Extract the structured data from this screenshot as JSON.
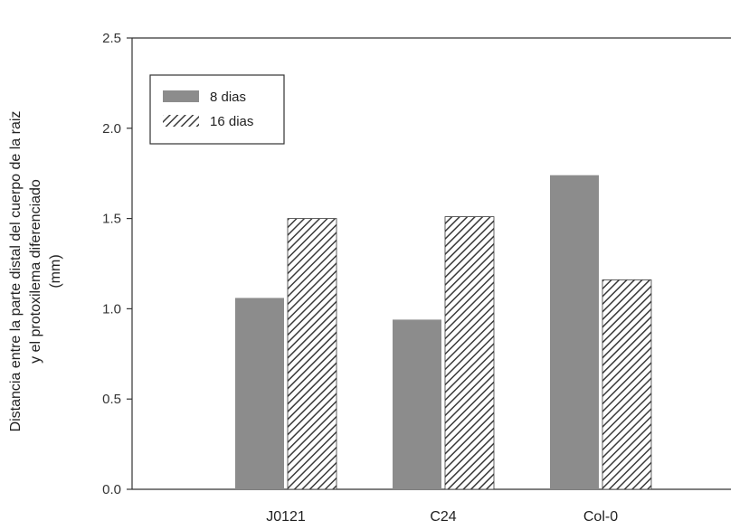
{
  "chart_data": {
    "type": "bar",
    "categories": [
      "J0121",
      "C24",
      "Col-0"
    ],
    "series": [
      {
        "name": "8 dias",
        "values": [
          1.06,
          0.94,
          1.74
        ],
        "fill": "#8c8c8c",
        "pattern": "solid"
      },
      {
        "name": "16 dias",
        "values": [
          1.5,
          1.51,
          1.16
        ],
        "fill": "#3a3a3a",
        "pattern": "hatch"
      }
    ],
    "ylabel_lines": [
      "Distancia entre la parte distal del cuerpo de la raiz",
      "y el protoxilema diferenciado",
      "(mm)"
    ],
    "ylim": [
      0,
      2.5
    ],
    "yticks": [
      "0.0",
      "0.5",
      "1.0",
      "1.5",
      "2.0",
      "2.5"
    ],
    "grid": false,
    "legend_position": "top-left",
    "colors": {
      "axis": "#333333",
      "bar_dark": "#8c8c8c",
      "hatch": "#3a3a3a"
    }
  }
}
